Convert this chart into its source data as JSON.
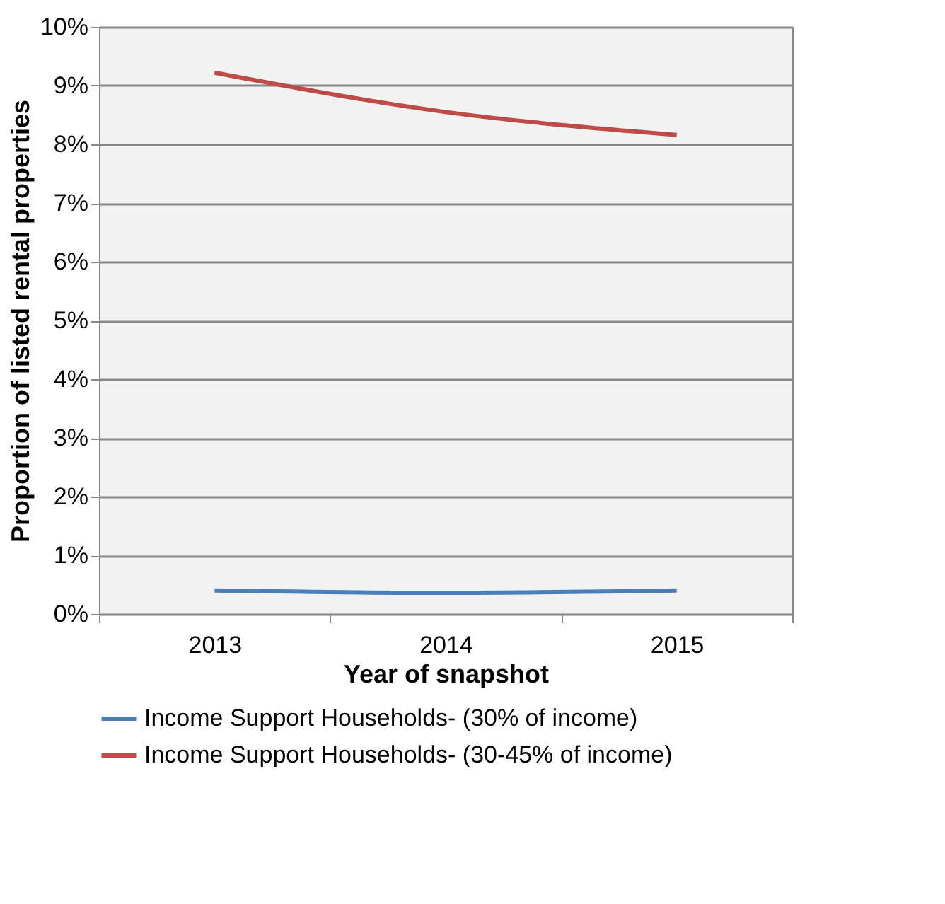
{
  "chart_data": {
    "type": "line",
    "xlabel": "Year of snapshot",
    "ylabel": "Proportion of listed rental properties",
    "categories": [
      "2013",
      "2014",
      "2015"
    ],
    "series": [
      {
        "name": "Income Support Households- (30%  of income)",
        "color": "#4a7ebb",
        "values": [
          0.4,
          0.36,
          0.4
        ]
      },
      {
        "name": "Income Support Households- (30-45%  of income)",
        "color": "#be4b48",
        "values": [
          9.22,
          8.55,
          8.16
        ]
      }
    ],
    "ylim": [
      0,
      10
    ],
    "yticks": [
      {
        "value": 0,
        "label": "0%"
      },
      {
        "value": 1,
        "label": "1%"
      },
      {
        "value": 2,
        "label": "2%"
      },
      {
        "value": 3,
        "label": "3%"
      },
      {
        "value": 4,
        "label": "4%"
      },
      {
        "value": 5,
        "label": "5%"
      },
      {
        "value": 6,
        "label": "6%"
      },
      {
        "value": 7,
        "label": "7%"
      },
      {
        "value": 8,
        "label": "8%"
      },
      {
        "value": 9,
        "label": "9%"
      },
      {
        "value": 10,
        "label": "10%"
      }
    ],
    "grid": "y",
    "legend": "bottom",
    "marker": "none",
    "line_style": "solid"
  }
}
